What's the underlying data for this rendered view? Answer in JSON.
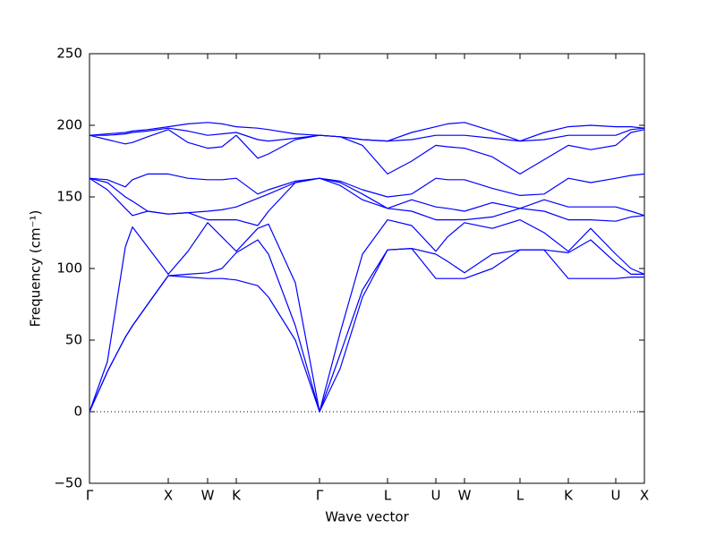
{
  "chart_data": {
    "type": "line",
    "xlabel": "Wave vector",
    "ylabel": "Frequency (cm⁻¹)",
    "x": [
      0,
      20,
      40,
      48,
      65,
      88,
      110,
      132,
      148,
      164,
      188,
      200,
      230,
      257,
      280,
      305,
      333,
      360,
      387,
      400,
      419,
      450,
      481,
      508,
      535,
      560,
      588,
      605,
      620
    ],
    "series": [
      {
        "color": "#0000ff",
        "values": [
          0,
          28,
          52,
          60,
          75,
          95,
          94,
          93,
          93,
          92,
          88,
          80,
          50,
          0,
          30,
          80,
          113,
          114,
          93,
          93,
          93,
          100,
          113,
          113,
          93,
          93,
          93,
          94,
          94
        ]
      },
      {
        "color": "#0000ff",
        "values": [
          0,
          28,
          52,
          60,
          75,
          95,
          96,
          97,
          100,
          111,
          120,
          110,
          60,
          0,
          40,
          85,
          113,
          114,
          110,
          105,
          97,
          110,
          113,
          113,
          111,
          120,
          104,
          96,
          96
        ]
      },
      {
        "color": "#0000ff",
        "values": [
          0,
          35,
          115,
          129,
          115,
          96,
          112,
          132,
          122,
          112,
          128,
          131,
          90,
          0,
          55,
          110,
          134,
          130,
          112,
          122,
          132,
          128,
          134,
          125,
          112,
          128,
          110,
          100,
          96
        ]
      },
      {
        "color": "#0000ff",
        "values": [
          163,
          155,
          142,
          137,
          140,
          138,
          139,
          134,
          134,
          134,
          130,
          140,
          160,
          163,
          158,
          148,
          142,
          140,
          134,
          134,
          134,
          136,
          142,
          140,
          134,
          134,
          133,
          136,
          137
        ]
      },
      {
        "color": "#0000ff",
        "values": [
          163,
          160,
          150,
          147,
          140,
          138,
          139,
          140,
          141,
          143,
          149,
          152,
          160,
          163,
          160,
          152,
          142,
          148,
          143,
          142,
          140,
          146,
          142,
          148,
          143,
          143,
          143,
          140,
          137
        ]
      },
      {
        "color": "#0000ff",
        "values": [
          163,
          162,
          157,
          162,
          166,
          166,
          163,
          162,
          162,
          163,
          152,
          155,
          161,
          163,
          161,
          155,
          150,
          152,
          163,
          162,
          162,
          156,
          151,
          152,
          163,
          160,
          163,
          165,
          166
        ]
      },
      {
        "color": "#0000ff",
        "values": [
          193,
          190,
          187,
          188,
          192,
          197,
          188,
          184,
          185,
          193,
          177,
          180,
          190,
          193,
          192,
          186,
          166,
          175,
          186,
          185,
          184,
          178,
          166,
          176,
          186,
          183,
          186,
          195,
          197
        ]
      },
      {
        "color": "#0000ff",
        "values": [
          193,
          193,
          194,
          195,
          196,
          198,
          196,
          193,
          194,
          195,
          190,
          189,
          191,
          193,
          192,
          190,
          189,
          190,
          193,
          193,
          193,
          191,
          189,
          190,
          193,
          193,
          193,
          197,
          198
        ]
      },
      {
        "color": "#0000ff",
        "values": [
          193,
          194,
          195,
          196,
          197,
          199,
          201,
          202,
          201,
          199,
          198,
          197,
          194,
          193,
          192,
          190,
          189,
          195,
          199,
          201,
          202,
          196,
          189,
          195,
          199,
          200,
          199,
          199,
          198
        ]
      }
    ],
    "xlim": [
      0,
      620
    ],
    "ylim": [
      -50,
      250
    ],
    "xticks": [
      {
        "value": 0,
        "label": "Γ"
      },
      {
        "value": 88,
        "label": "X"
      },
      {
        "value": 132,
        "label": "W"
      },
      {
        "value": 164,
        "label": "K"
      },
      {
        "value": 257,
        "label": "Γ"
      },
      {
        "value": 333,
        "label": "L"
      },
      {
        "value": 387,
        "label": "U"
      },
      {
        "value": 419,
        "label": "W"
      },
      {
        "value": 481,
        "label": "L"
      },
      {
        "value": 535,
        "label": "K"
      },
      {
        "value": 588,
        "label": "U"
      },
      {
        "value": 620,
        "label": "X"
      }
    ],
    "yticks": [
      {
        "value": -50,
        "label": "−50"
      },
      0,
      50,
      100,
      150,
      200,
      250
    ],
    "hline": 0,
    "grid": false
  }
}
